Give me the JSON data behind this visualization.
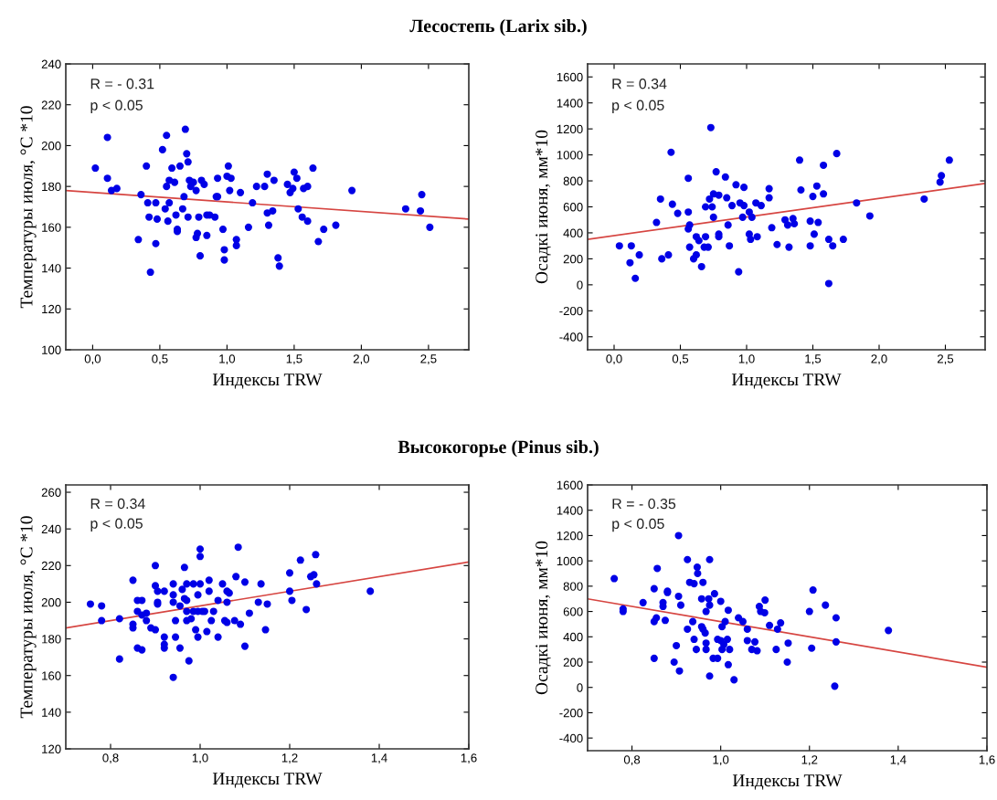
{
  "chart_data": [
    {
      "type": "scatter",
      "title": "Лесостепь (Larix sib.)",
      "xlabel": "Индексы TRW",
      "ylabel": "Температуры июля, °C *10",
      "annotations": [
        "R = - 0.31",
        "p < 0.05"
      ],
      "grid": false,
      "xlim": [
        -0.2,
        2.8
      ],
      "ylim": [
        100,
        240
      ],
      "xticks": [
        {
          "value": 0,
          "label": "0,0"
        },
        {
          "value": 0.5,
          "label": "0,5"
        },
        {
          "value": 1,
          "label": "1,0"
        },
        {
          "value": 1.5,
          "label": "1,5"
        },
        {
          "value": 2,
          "label": "2,0"
        },
        {
          "value": 2.5,
          "label": "2,5"
        }
      ],
      "yticks": [
        100,
        120,
        140,
        160,
        180,
        200,
        220,
        240
      ],
      "series": [
        {
          "marker": "circle",
          "color": "#0000e6",
          "x": [
            0.02,
            0.11,
            0.11,
            0.14,
            0.18,
            0.34,
            0.36,
            0.4,
            0.41,
            0.42,
            0.43,
            0.47,
            0.47,
            0.48,
            0.52,
            0.54,
            0.55,
            0.55,
            0.56,
            0.57,
            0.57,
            0.59,
            0.61,
            0.62,
            0.63,
            0.63,
            0.65,
            0.67,
            0.68,
            0.69,
            0.7,
            0.71,
            0.71,
            0.72,
            0.73,
            0.75,
            0.77,
            0.77,
            0.78,
            0.79,
            0.8,
            0.81,
            0.83,
            0.85,
            0.85,
            0.87,
            0.91,
            0.92,
            0.93,
            0.93,
            0.97,
            0.98,
            0.98,
            1.0,
            1.01,
            1.02,
            1.03,
            1.07,
            1.07,
            1.1,
            1.16,
            1.19,
            1.22,
            1.28,
            1.3,
            1.3,
            1.31,
            1.34,
            1.35,
            1.38,
            1.39,
            1.45,
            1.47,
            1.49,
            1.5,
            1.52,
            1.53,
            1.56,
            1.57,
            1.6,
            1.6,
            1.64,
            1.68,
            1.72,
            1.81,
            1.93,
            2.33,
            2.44,
            2.45,
            2.51
          ],
          "values": [
            189,
            204,
            184,
            178,
            179,
            154,
            176,
            190,
            172,
            165,
            138,
            172,
            152,
            164,
            198,
            169,
            205,
            180,
            163,
            172,
            183,
            189,
            182,
            166,
            159,
            158,
            190,
            169,
            175,
            208,
            196,
            192,
            165,
            183,
            180,
            182,
            178,
            155,
            157,
            165,
            146,
            183,
            181,
            156,
            166,
            166,
            165,
            175,
            175,
            184,
            159,
            149,
            144,
            185,
            190,
            178,
            184,
            154,
            151,
            177,
            160,
            172,
            180,
            180,
            186,
            167,
            161,
            168,
            183,
            145,
            141,
            181,
            177,
            179,
            187,
            184,
            169,
            165,
            179,
            180,
            163,
            189,
            153,
            159,
            161,
            178,
            169,
            168,
            176,
            160
          ]
        },
        {
          "type": "line",
          "color": "#d64541",
          "x": [
            -0.2,
            2.8
          ],
          "values": [
            178,
            164
          ]
        }
      ]
    },
    {
      "type": "scatter",
      "xlabel": "Индексы TRW",
      "ylabel": "Осадкі июня, мм*10",
      "annotations": [
        "R = 0.34",
        "p < 0.05"
      ],
      "grid": false,
      "xlim": [
        -0.2,
        2.8
      ],
      "ylim": [
        -500,
        1700
      ],
      "xticks": [
        {
          "value": 0,
          "label": "0,0"
        },
        {
          "value": 0.5,
          "label": "0,5"
        },
        {
          "value": 1,
          "label": "1,0"
        },
        {
          "value": 1.5,
          "label": "1,5"
        },
        {
          "value": 2,
          "label": "2,0"
        },
        {
          "value": 2.5,
          "label": "2,5"
        }
      ],
      "yticks": [
        -400,
        -200,
        0,
        200,
        400,
        600,
        800,
        1000,
        1200,
        1400,
        1600
      ],
      "series": [
        {
          "marker": "circle",
          "color": "#0000e6",
          "x": [
            0.04,
            0.12,
            0.13,
            0.16,
            0.19,
            0.32,
            0.35,
            0.36,
            0.41,
            0.43,
            0.44,
            0.48,
            0.56,
            0.56,
            0.56,
            0.57,
            0.57,
            0.6,
            0.62,
            0.64,
            0.62,
            0.66,
            0.68,
            0.69,
            0.69,
            0.71,
            0.72,
            0.73,
            0.74,
            0.75,
            0.75,
            0.77,
            0.79,
            0.79,
            0.79,
            0.84,
            0.85,
            0.86,
            0.87,
            0.89,
            0.92,
            0.94,
            0.95,
            0.97,
            0.98,
            0.98,
            1.02,
            1.02,
            1.03,
            1.04,
            1.07,
            1.08,
            1.11,
            1.17,
            1.17,
            1.19,
            1.23,
            1.29,
            1.31,
            1.32,
            1.35,
            1.36,
            1.4,
            1.41,
            1.48,
            1.48,
            1.5,
            1.51,
            1.53,
            1.54,
            1.58,
            1.58,
            1.62,
            1.62,
            1.65,
            1.68,
            1.73,
            1.83,
            1.93,
            2.34,
            2.46,
            2.47,
            2.53
          ],
          "values": [
            300,
            170,
            300,
            50,
            230,
            480,
            660,
            200,
            230,
            1020,
            620,
            550,
            820,
            560,
            430,
            460,
            290,
            200,
            370,
            340,
            230,
            140,
            290,
            370,
            600,
            290,
            660,
            1210,
            600,
            520,
            700,
            870,
            690,
            390,
            370,
            830,
            670,
            460,
            300,
            610,
            770,
            100,
            630,
            520,
            750,
            610,
            560,
            390,
            350,
            520,
            630,
            370,
            610,
            740,
            670,
            440,
            310,
            500,
            460,
            290,
            510,
            470,
            960,
            730,
            490,
            300,
            680,
            390,
            760,
            480,
            700,
            920,
            350,
            10,
            300,
            1010,
            350,
            630,
            530,
            660,
            790,
            840,
            960
          ]
        },
        {
          "type": "line",
          "color": "#d64541",
          "x": [
            -0.2,
            2.8
          ],
          "values": [
            350,
            780
          ]
        }
      ]
    },
    {
      "type": "scatter",
      "title": "Высокогорье (Pinus sib.)",
      "xlabel": "Индексы TRW",
      "ylabel": "Температуры июля, °C *10",
      "annotations": [
        "R = 0.34",
        "p < 0.05"
      ],
      "grid": false,
      "xlim": [
        0.7,
        1.6
      ],
      "ylim": [
        120,
        264
      ],
      "xticks": [
        {
          "value": 0.8,
          "label": "0,8"
        },
        {
          "value": 1,
          "label": "1,0"
        },
        {
          "value": 1.2,
          "label": "1,2"
        },
        {
          "value": 1.4,
          "label": "1,4"
        },
        {
          "value": 1.6,
          "label": "1,6"
        }
      ],
      "yticks": [
        120,
        140,
        160,
        180,
        200,
        220,
        240,
        260
      ],
      "series": [
        {
          "marker": "circle",
          "color": "#0000e6",
          "x": [
            0.755,
            0.78,
            0.78,
            0.82,
            0.82,
            0.85,
            0.85,
            0.85,
            0.86,
            0.86,
            0.86,
            0.87,
            0.87,
            0.87,
            0.88,
            0.88,
            0.89,
            0.9,
            0.9,
            0.905,
            0.9,
            0.905,
            0.905,
            0.92,
            0.92,
            0.92,
            0.92,
            0.94,
            0.94,
            0.94,
            0.945,
            0.94,
            0.945,
            0.955,
            0.955,
            0.96,
            0.965,
            0.965,
            0.97,
            0.97,
            0.97,
            0.97,
            0.975,
            0.98,
            0.985,
            0.985,
            0.99,
            0.995,
            0.995,
            0.995,
            1.0,
            1.0,
            1.0,
            1.005,
            1.01,
            1.015,
            1.02,
            1.02,
            1.025,
            1.03,
            1.04,
            1.04,
            1.05,
            1.055,
            1.06,
            1.06,
            1.065,
            1.06,
            1.077,
            1.08,
            1.085,
            1.09,
            1.1,
            1.1,
            1.11,
            1.13,
            1.136,
            1.146,
            1.15,
            1.2,
            1.2,
            1.205,
            1.224,
            1.237,
            1.247,
            1.254,
            1.258,
            1.26,
            1.38
          ],
          "values": [
            199,
            198,
            190,
            191,
            169,
            212,
            188,
            186,
            195,
            175,
            201,
            174,
            201,
            193,
            194,
            190,
            186,
            220,
            209,
            206,
            185,
            200,
            199,
            206,
            175,
            181,
            177,
            210,
            200,
            204,
            181,
            159,
            190,
            175,
            198,
            207,
            219,
            202,
            210,
            195,
            201,
            190,
            168,
            191,
            210,
            195,
            185,
            195,
            204,
            181,
            229,
            225,
            210,
            195,
            195,
            184,
            212,
            206,
            190,
            195,
            181,
            201,
            210,
            190,
            200,
            206,
            205,
            189,
            190,
            214,
            230,
            188,
            176,
            211,
            194,
            200,
            210,
            185,
            199,
            216,
            206,
            201,
            223,
            196,
            214,
            215,
            226,
            210,
            206
          ]
        },
        {
          "type": "line",
          "color": "#d64541",
          "x": [
            0.7,
            1.6
          ],
          "values": [
            186,
            222
          ]
        }
      ]
    },
    {
      "type": "scatter",
      "xlabel": "Индексы TRW",
      "ylabel": "Осадкі июня, мм*10",
      "annotations": [
        "R = - 0.35",
        "p < 0.05"
      ],
      "grid": false,
      "xlim": [
        0.7,
        1.6
      ],
      "ylim": [
        -500,
        1600
      ],
      "xticks": [
        {
          "value": 0.8,
          "label": "0,8"
        },
        {
          "value": 1,
          "label": "1,0"
        },
        {
          "value": 1.2,
          "label": "1,2"
        },
        {
          "value": 1.4,
          "label": "1,4"
        },
        {
          "value": 1.6,
          "label": "1,6"
        }
      ],
      "yticks": [
        -400,
        -200,
        0,
        200,
        400,
        600,
        800,
        1000,
        1200,
        1400,
        1600
      ],
      "series": [
        {
          "marker": "circle",
          "color": "#0000e6",
          "x": [
            0.76,
            0.78,
            0.78,
            0.825,
            0.85,
            0.85,
            0.85,
            0.855,
            0.857,
            0.87,
            0.87,
            0.875,
            0.88,
            0.88,
            0.895,
            0.9,
            0.905,
            0.905,
            0.907,
            0.91,
            0.925,
            0.925,
            0.93,
            0.937,
            0.94,
            0.94,
            0.945,
            0.947,
            0.948,
            0.957,
            0.957,
            0.96,
            0.96,
            0.965,
            0.967,
            0.967,
            0.967,
            0.973,
            0.975,
            0.975,
            0.975,
            0.983,
            0.986,
            0.993,
            0.993,
            1.0,
            1.0,
            1.003,
            1.003,
            1.007,
            1.01,
            1.015,
            1.017,
            1.017,
            1.02,
            1.03,
            1.04,
            1.05,
            1.06,
            1.06,
            1.07,
            1.077,
            1.082,
            1.087,
            1.09,
            1.099,
            1.1,
            1.11,
            1.125,
            1.128,
            1.135,
            1.15,
            1.152,
            1.2,
            1.205,
            1.208,
            1.236,
            1.257,
            1.26,
            1.26,
            1.378
          ],
          "values": [
            860,
            620,
            600,
            670,
            780,
            520,
            230,
            550,
            940,
            670,
            640,
            530,
            760,
            750,
            200,
            330,
            1200,
            720,
            130,
            650,
            1010,
            460,
            830,
            520,
            380,
            820,
            300,
            950,
            900,
            700,
            480,
            460,
            830,
            430,
            600,
            350,
            300,
            700,
            650,
            90,
            1010,
            230,
            740,
            380,
            230,
            680,
            370,
            480,
            300,
            340,
            520,
            380,
            610,
            180,
            300,
            60,
            550,
            520,
            460,
            370,
            300,
            360,
            290,
            640,
            600,
            590,
            690,
            490,
            300,
            460,
            510,
            200,
            350,
            600,
            310,
            770,
            650,
            10,
            550,
            360,
            450
          ]
        },
        {
          "type": "line",
          "color": "#d64541",
          "x": [
            0.7,
            1.6
          ],
          "values": [
            700,
            160
          ]
        }
      ]
    }
  ]
}
